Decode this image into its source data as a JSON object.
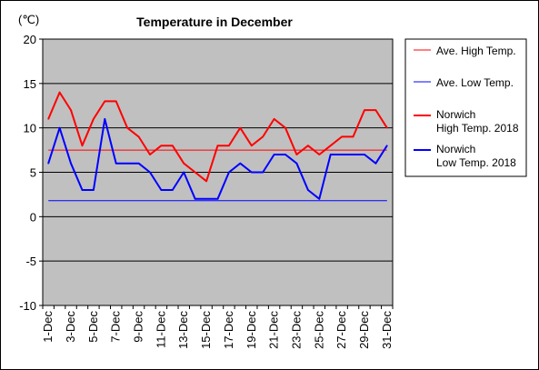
{
  "chart_data": {
    "type": "line",
    "title": "Temperature in December",
    "ylabel": "(℃)",
    "xlabel": "",
    "ylim": [
      -10,
      20
    ],
    "yticks": [
      -10,
      -5,
      0,
      5,
      10,
      15,
      20
    ],
    "grid": true,
    "legend_position": "right",
    "categories": [
      "1-Dec",
      "2-Dec",
      "3-Dec",
      "4-Dec",
      "5-Dec",
      "6-Dec",
      "7-Dec",
      "8-Dec",
      "9-Dec",
      "10-Dec",
      "11-Dec",
      "12-Dec",
      "13-Dec",
      "14-Dec",
      "15-Dec",
      "16-Dec",
      "17-Dec",
      "18-Dec",
      "19-Dec",
      "20-Dec",
      "21-Dec",
      "22-Dec",
      "23-Dec",
      "24-Dec",
      "25-Dec",
      "26-Dec",
      "27-Dec",
      "28-Dec",
      "29-Dec",
      "30-Dec",
      "31-Dec"
    ],
    "tick_labels": [
      "1-Dec",
      "3-Dec",
      "5-Dec",
      "7-Dec",
      "9-Dec",
      "11-Dec",
      "13-Dec",
      "15-Dec",
      "17-Dec",
      "19-Dec",
      "21-Dec",
      "23-Dec",
      "25-Dec",
      "27-Dec",
      "29-Dec",
      "31-Dec"
    ],
    "series": [
      {
        "name": "Ave. High Temp.",
        "color": "#ff0000",
        "width": 1,
        "constant": 7.5
      },
      {
        "name": "Ave. Low Temp.",
        "color": "#0000ff",
        "width": 1,
        "constant": 1.8
      },
      {
        "name": "Norwich\nHigh Temp. 2018",
        "color": "#ff0000",
        "width": 2,
        "values": [
          11,
          14,
          12,
          8,
          11,
          13,
          13,
          10,
          9,
          7,
          8,
          8,
          6,
          5,
          4,
          8,
          8,
          10,
          8,
          9,
          11,
          10,
          7,
          8,
          7,
          8,
          9,
          9,
          12,
          12,
          10
        ]
      },
      {
        "name": "Norwich\nLow Temp. 2018",
        "color": "#0000ff",
        "width": 2,
        "values": [
          6,
          10,
          6,
          3,
          3,
          11,
          6,
          6,
          6,
          5,
          3,
          3,
          5,
          2,
          2,
          2,
          5,
          6,
          5,
          5,
          7,
          7,
          6,
          3,
          2,
          7,
          7,
          7,
          7,
          6,
          8
        ]
      }
    ]
  }
}
